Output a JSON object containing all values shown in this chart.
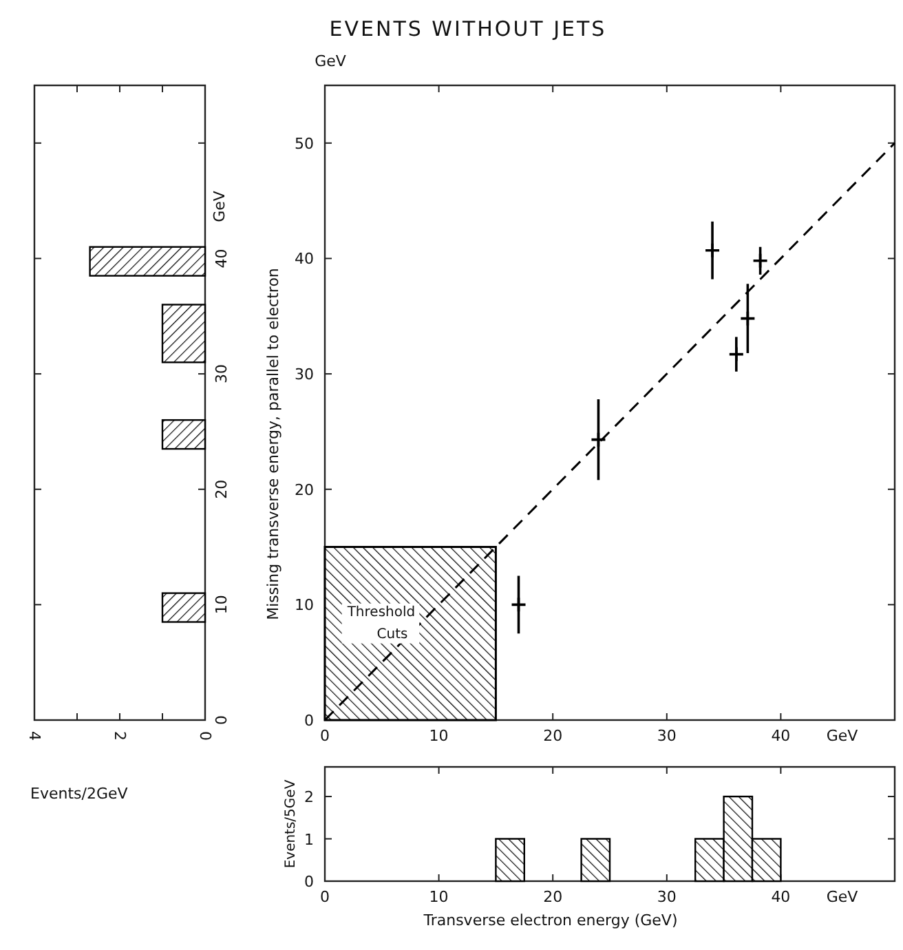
{
  "chart_data": [
    {
      "type": "histogram",
      "orientation": "horizontal",
      "bins": [
        8.5,
        11,
        23.5,
        26,
        31,
        36,
        38.5,
        41
      ],
      "values": [
        1,
        0,
        1,
        0,
        1,
        0,
        2.7
      ],
      "color": "#000000",
      "xlim": [
        4,
        0
      ],
      "xticks": [
        {
          "value": 4,
          "label": "4"
        },
        {
          "value": 3,
          "label": null
        },
        {
          "value": 2,
          "label": "2"
        },
        {
          "value": 1,
          "label": null
        },
        {
          "value": 0,
          "label": "0"
        }
      ],
      "ylim": [
        0,
        55
      ],
      "yticks": [
        0,
        10,
        20,
        30,
        40,
        {
          "value": 50,
          "label": null
        }
      ],
      "xlabel": "Events/2GeV",
      "ylabel": "GeV"
    },
    {
      "type": "scatter",
      "title": "EVENTS WITHOUT JETS",
      "xlabel": "GeV",
      "ylabel": "Missing transverse energy, parallel to electron",
      "xlim": [
        0,
        50
      ],
      "xticks": [
        0,
        10,
        20,
        30,
        40
      ],
      "ylim": [
        0,
        55
      ],
      "yticks": [
        0,
        10,
        20,
        30,
        40,
        50
      ],
      "line_style": "dashed",
      "annotations": [
        "GeV",
        "Threshold Cuts"
      ],
      "series": [
        {
          "type": "area",
          "color": "#000000",
          "x": [
            0,
            15
          ],
          "values": [
            15,
            15
          ]
        },
        {
          "type": "scatter",
          "marker": "cross",
          "color": "#000000",
          "x": [
            17,
            24,
            34,
            36.1,
            37.1,
            38.2
          ],
          "values": [
            10,
            24.3,
            40.7,
            31.7,
            34.8,
            39.8
          ],
          "errors": [
            2.5,
            3.5,
            2.5,
            1.5,
            3,
            1.2
          ]
        },
        {
          "type": "line",
          "color": "#000000",
          "x": [
            0,
            50
          ],
          "values": [
            0,
            50
          ]
        }
      ]
    },
    {
      "type": "histogram",
      "bins": [
        15,
        17.5,
        22.5,
        25,
        32.5,
        35,
        37.5,
        40
      ],
      "values": [
        1,
        0,
        1,
        0,
        1,
        2,
        1
      ],
      "color": "#000000",
      "xlim": [
        0,
        50
      ],
      "xticks": [
        0,
        10,
        20,
        30,
        40
      ],
      "ylim": [
        0,
        2.7
      ],
      "yticks": [
        0,
        1,
        2
      ],
      "xlabel": "Transverse electron energy (GeV)",
      "ylabel": "Events/5GeV",
      "annotations": [
        "GeV"
      ]
    }
  ]
}
